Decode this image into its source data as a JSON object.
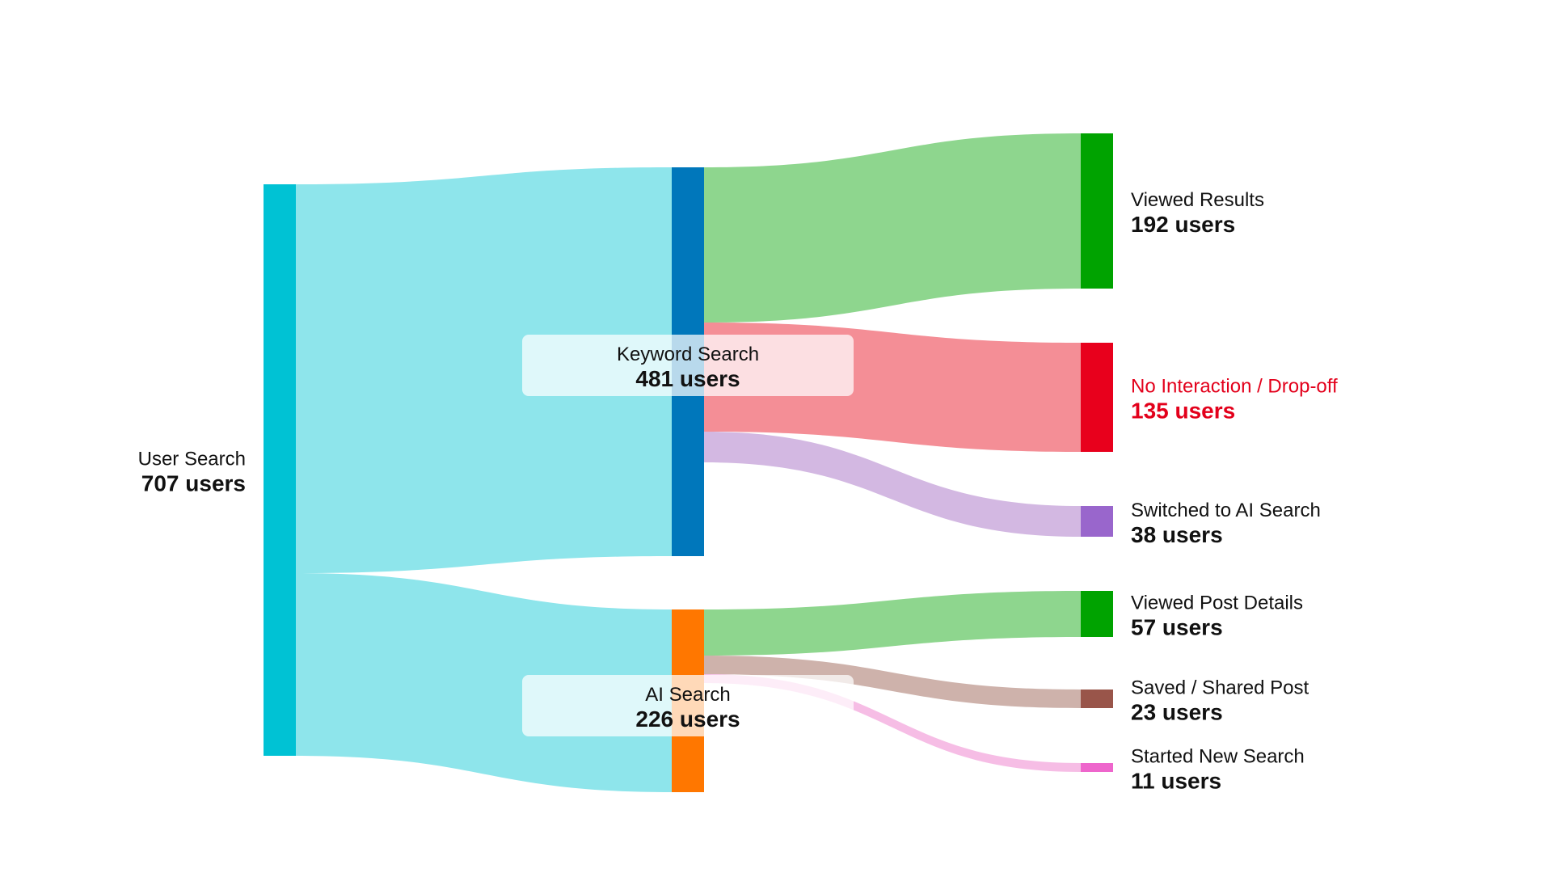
{
  "chart_data": {
    "type": "sankey",
    "unit_suffix": "users",
    "nodes": [
      {
        "id": "user_search",
        "name": "User Search",
        "value": 707,
        "color": "#00c2d4",
        "column": 0
      },
      {
        "id": "keyword_search",
        "name": "Keyword Search",
        "value": 481,
        "color": "#0077bb",
        "column": 1
      },
      {
        "id": "ai_search",
        "name": "AI Search",
        "value": 226,
        "color": "#ff7700",
        "column": 1
      },
      {
        "id": "viewed_results",
        "name": "Viewed Results",
        "value": 192,
        "color": "#00a300",
        "column": 2
      },
      {
        "id": "no_interaction",
        "name": "No Interaction / Drop-off",
        "value": 135,
        "color": "#e8001c",
        "column": 2,
        "label_color": "#e3001b"
      },
      {
        "id": "switched_ai",
        "name": "Switched to AI Search",
        "value": 38,
        "color": "#9966cc",
        "column": 2
      },
      {
        "id": "viewed_post",
        "name": "Viewed Post Details",
        "value": 57,
        "color": "#00a300",
        "column": 2
      },
      {
        "id": "saved_shared",
        "name": "Saved / Shared Post",
        "value": 23,
        "color": "#99554a",
        "column": 2
      },
      {
        "id": "new_search",
        "name": "Started New Search",
        "value": 11,
        "color": "#ee66cc",
        "column": 2
      }
    ],
    "links": [
      {
        "source": "user_search",
        "target": "keyword_search",
        "value": 481,
        "color": "#8ee5eb"
      },
      {
        "source": "user_search",
        "target": "ai_search",
        "value": 226,
        "color": "#8ee5eb"
      },
      {
        "source": "keyword_search",
        "target": "viewed_results",
        "value": 192,
        "color": "#8ed68e"
      },
      {
        "source": "keyword_search",
        "target": "no_interaction",
        "value": 135,
        "color": "#f48e96"
      },
      {
        "source": "keyword_search",
        "target": "switched_ai",
        "value": 38,
        "color": "#d3b8e2"
      },
      {
        "source": "ai_search",
        "target": "viewed_post",
        "value": 57,
        "color": "#8ed68e"
      },
      {
        "source": "ai_search",
        "target": "saved_shared",
        "value": 23,
        "color": "#ceb2ab"
      },
      {
        "source": "ai_search",
        "target": "new_search",
        "value": 11,
        "color": "#f6bde5"
      }
    ]
  }
}
